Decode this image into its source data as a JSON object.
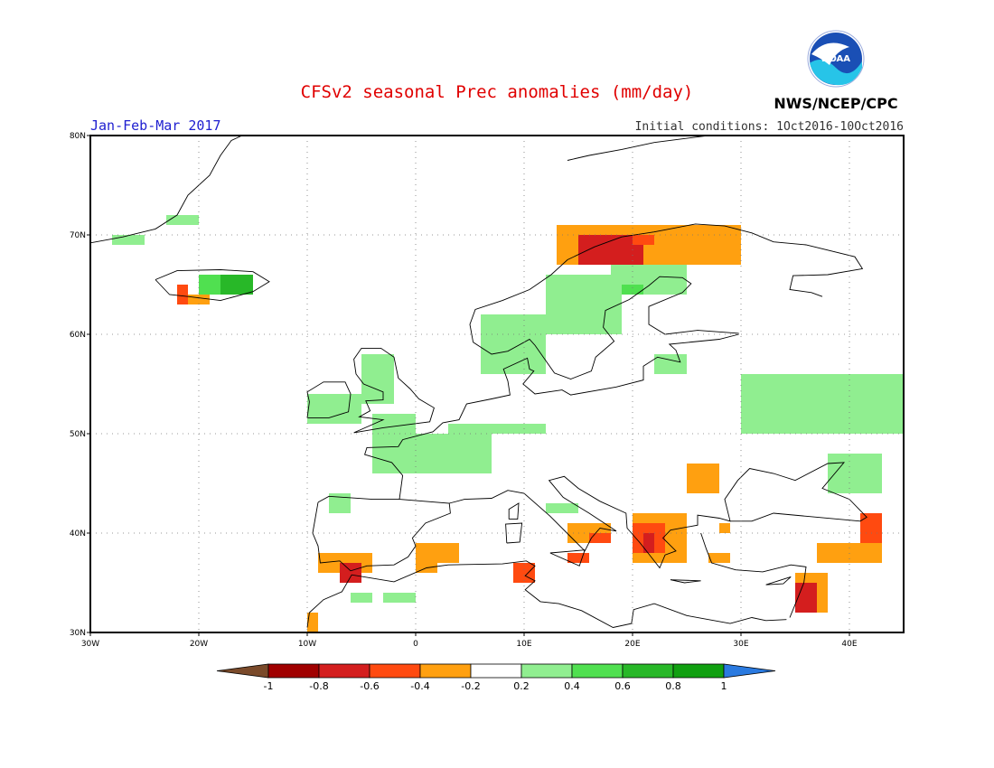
{
  "header": {
    "title": "CFSv2 seasonal Prec anomalies (mm/day)",
    "period": "Jan-Feb-Mar 2017",
    "initial_conditions": "Initial conditions: 1Oct2016-10Oct2016",
    "agency": "NWS/NCEP/CPC",
    "logo_text": "NOAA"
  },
  "colors": {
    "title": "#e00000",
    "period": "#2020d0",
    "water": "#ffffff",
    "land_line": "#000000"
  },
  "map": {
    "lon_range": [
      -30,
      45
    ],
    "lat_range": [
      30,
      80
    ],
    "lon_ticks": [
      "30W",
      "20W",
      "10W",
      "0",
      "10E",
      "20E",
      "30E",
      "40E"
    ],
    "lat_ticks": [
      "30N",
      "40N",
      "50N",
      "60N",
      "70N",
      "80N"
    ],
    "grid": "dotted"
  },
  "chart_data": {
    "type": "heatmap",
    "variable": "precipitation anomaly (mm/day)",
    "colorbar": {
      "labels": [
        "-1",
        "-0.8",
        "-0.6",
        "-0.4",
        "-0.2",
        "0.2",
        "0.4",
        "0.6",
        "0.8",
        "1"
      ],
      "bins": [
        {
          "range": "< -1",
          "color": "#7a4a2a"
        },
        {
          "range": "-1 to -0.8",
          "color": "#a00000"
        },
        {
          "range": "-0.8 to -0.6",
          "color": "#d41e1e"
        },
        {
          "range": "-0.6 to -0.4",
          "color": "#ff4a10"
        },
        {
          "range": "-0.4 to -0.2",
          "color": "#ffa010"
        },
        {
          "range": "-0.2 to 0.2",
          "color": "#ffffff"
        },
        {
          "range": "0.2 to 0.4",
          "color": "#90ee90"
        },
        {
          "range": "0.4 to 0.6",
          "color": "#50e050"
        },
        {
          "range": "0.6 to 0.8",
          "color": "#28b828"
        },
        {
          "range": "0.8 to 1",
          "color": "#10a010"
        },
        {
          "range": "> 1",
          "color": "#2a7ae0"
        }
      ]
    },
    "anomaly_cells": [
      {
        "lon": [
          -28,
          -25
        ],
        "lat": [
          69,
          70
        ],
        "value": 0.3
      },
      {
        "lon": [
          -23,
          -20
        ],
        "lat": [
          71,
          72
        ],
        "value": 0.3
      },
      {
        "lon": [
          -20,
          -15
        ],
        "lat": [
          64,
          66
        ],
        "value": 0.5
      },
      {
        "lon": [
          -18,
          -15
        ],
        "lat": [
          64,
          66
        ],
        "value": 0.7
      },
      {
        "lon": [
          -22,
          -21
        ],
        "lat": [
          63,
          65
        ],
        "value": -0.6
      },
      {
        "lon": [
          -21,
          -19
        ],
        "lat": [
          63,
          64
        ],
        "value": -0.3
      },
      {
        "lon": [
          -10,
          -5
        ],
        "lat": [
          51,
          54
        ],
        "value": 0.3
      },
      {
        "lon": [
          -5,
          -2
        ],
        "lat": [
          53,
          58
        ],
        "value": 0.3
      },
      {
        "lon": [
          -4,
          0
        ],
        "lat": [
          50,
          52
        ],
        "value": 0.3
      },
      {
        "lon": [
          -4,
          7
        ],
        "lat": [
          46,
          50
        ],
        "value": 0.3
      },
      {
        "lon": [
          3,
          12
        ],
        "lat": [
          50,
          51
        ],
        "value": 0.3
      },
      {
        "lon": [
          6,
          12
        ],
        "lat": [
          56,
          62
        ],
        "value": 0.3
      },
      {
        "lon": [
          12,
          19
        ],
        "lat": [
          60,
          66
        ],
        "value": 0.3
      },
      {
        "lon": [
          18,
          25
        ],
        "lat": [
          64,
          67
        ],
        "value": 0.3
      },
      {
        "lon": [
          19,
          21
        ],
        "lat": [
          64,
          65
        ],
        "value": 0.5
      },
      {
        "lon": [
          13,
          30
        ],
        "lat": [
          67,
          71
        ],
        "value": -0.3
      },
      {
        "lon": [
          15,
          21
        ],
        "lat": [
          67,
          70
        ],
        "value": -0.8
      },
      {
        "lon": [
          20,
          22
        ],
        "lat": [
          69,
          70
        ],
        "value": -0.6
      },
      {
        "lon": [
          30,
          45
        ],
        "lat": [
          50,
          56
        ],
        "value": 0.3
      },
      {
        "lon": [
          38,
          43
        ],
        "lat": [
          44,
          48
        ],
        "value": 0.3
      },
      {
        "lon": [
          25,
          28
        ],
        "lat": [
          44,
          47
        ],
        "value": -0.3
      },
      {
        "lon": [
          20,
          25
        ],
        "lat": [
          37,
          42
        ],
        "value": -0.3
      },
      {
        "lon": [
          20,
          23
        ],
        "lat": [
          38,
          41
        ],
        "value": -0.6
      },
      {
        "lon": [
          21,
          22
        ],
        "lat": [
          38,
          40
        ],
        "value": -0.8
      },
      {
        "lon": [
          14,
          18
        ],
        "lat": [
          39,
          41
        ],
        "value": -0.3
      },
      {
        "lon": [
          16,
          18
        ],
        "lat": [
          39,
          40
        ],
        "value": -0.5
      },
      {
        "lon": [
          14,
          16
        ],
        "lat": [
          37,
          38
        ],
        "value": -0.5
      },
      {
        "lon": [
          9,
          11
        ],
        "lat": [
          35,
          37
        ],
        "value": -0.5
      },
      {
        "lon": [
          -9,
          -4
        ],
        "lat": [
          36,
          38
        ],
        "value": -0.3
      },
      {
        "lon": [
          -7,
          -5
        ],
        "lat": [
          35,
          37
        ],
        "value": -0.7
      },
      {
        "lon": [
          -10,
          -9
        ],
        "lat": [
          30,
          32
        ],
        "value": -0.3
      },
      {
        "lon": [
          0,
          4
        ],
        "lat": [
          37,
          39
        ],
        "value": -0.3
      },
      {
        "lon": [
          0,
          2
        ],
        "lat": [
          36,
          37
        ],
        "value": -0.3
      },
      {
        "lon": [
          37,
          43
        ],
        "lat": [
          37,
          39
        ],
        "value": -0.3
      },
      {
        "lon": [
          41,
          43
        ],
        "lat": [
          39,
          42
        ],
        "value": -0.6
      },
      {
        "lon": [
          35,
          38
        ],
        "lat": [
          32,
          36
        ],
        "value": -0.3
      },
      {
        "lon": [
          35,
          37
        ],
        "lat": [
          32,
          35
        ],
        "value": -0.8
      },
      {
        "lon": [
          27,
          29
        ],
        "lat": [
          37,
          38
        ],
        "value": -0.3
      },
      {
        "lon": [
          28,
          29
        ],
        "lat": [
          40,
          41
        ],
        "value": -0.3
      },
      {
        "lon": [
          -8,
          -6
        ],
        "lat": [
          42,
          44
        ],
        "value": 0.3
      },
      {
        "lon": [
          -6,
          -4
        ],
        "lat": [
          33,
          34
        ],
        "value": 0.3
      },
      {
        "lon": [
          -3,
          0
        ],
        "lat": [
          33,
          34
        ],
        "value": 0.3
      },
      {
        "lon": [
          12,
          15
        ],
        "lat": [
          42,
          43
        ],
        "value": 0.3
      },
      {
        "lon": [
          22,
          25
        ],
        "lat": [
          56,
          58
        ],
        "value": 0.3
      }
    ]
  }
}
